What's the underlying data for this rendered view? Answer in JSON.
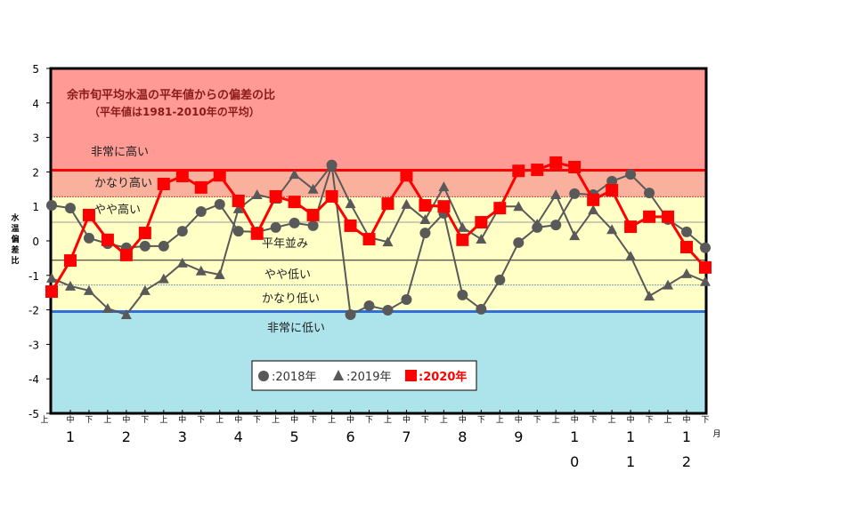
{
  "chart_data": {
    "type": "line",
    "title": "余市旬平均水温の平年値からの偏差の比",
    "subtitle": "（平年値は1981-2010年の平均）",
    "ylabel": "水温偏差比",
    "xunit": "月",
    "ylim": [
      -5,
      5
    ],
    "yticks": [
      "5",
      "4",
      "3",
      "2",
      "1",
      "0",
      "-1",
      "-2",
      "-3",
      "-4",
      "-5"
    ],
    "period_labels": [
      "上",
      "中",
      "下"
    ],
    "month_labels": [
      "1",
      "2",
      "3",
      "4",
      "5",
      "6",
      "7",
      "8",
      "9",
      "10",
      "11",
      "12"
    ],
    "bands": [
      {
        "label": "非常に高い",
        "from": 2.05,
        "to": 5,
        "color": "#ff9a94"
      },
      {
        "label": "かなり高い",
        "from": 1.28,
        "to": 2.05,
        "color": "#f9b09c"
      },
      {
        "label": "やや高い",
        "from": 0.54,
        "to": 1.28,
        "color": "#ffffc6"
      },
      {
        "label": "平年並み",
        "from": -0.56,
        "to": 0.54,
        "color": "#ffffc6"
      },
      {
        "label": "やや低い",
        "from": -1.28,
        "to": -0.56,
        "color": "#ffffc6"
      },
      {
        "label": "かなり低い",
        "from": -2.05,
        "to": -1.28,
        "color": "#ffffc6"
      },
      {
        "label": "非常に低い",
        "from": -5,
        "to": -2.05,
        "color": "#ade4ec"
      }
    ],
    "series": [
      {
        "name": "2018年",
        "legend": "●:2018年",
        "marker": "circle",
        "color": "#595959",
        "values": [
          1.03,
          0.95,
          0.08,
          -0.08,
          -0.2,
          -0.15,
          -0.15,
          0.28,
          0.85,
          1.06,
          0.28,
          0.26,
          0.39,
          0.52,
          0.44,
          2.2,
          -2.14,
          -1.88,
          -2.01,
          -1.7,
          0.23,
          0.8,
          -1.57,
          -1.98,
          -1.13,
          -0.05,
          0.39,
          0.46,
          1.37,
          1.34,
          1.73,
          1.93,
          1.39,
          0.62,
          0.26,
          -0.2
        ]
      },
      {
        "name": "2019年",
        "legend": "▲:2019年",
        "marker": "triangle",
        "color": "#595959",
        "values": [
          -1.08,
          -1.31,
          -1.44,
          -1.96,
          -2.14,
          -1.44,
          -1.1,
          -0.64,
          -0.87,
          -0.98,
          0.93,
          1.34,
          1.21,
          1.93,
          1.5,
          2.2,
          1.08,
          0.1,
          -0.03,
          1.06,
          0.62,
          1.57,
          0.39,
          0.05,
          1.0,
          1.0,
          0.49,
          1.34,
          0.15,
          0.9,
          0.33,
          -0.44,
          -1.6,
          -1.28,
          -0.95,
          -1.18
        ]
      },
      {
        "name": "2020年",
        "legend": "■:2020年",
        "marker": "square",
        "color": "#ff0000",
        "values": [
          -1.47,
          -0.57,
          0.75,
          0.03,
          -0.41,
          0.23,
          1.65,
          1.88,
          1.55,
          1.9,
          1.16,
          0.21,
          1.29,
          1.13,
          0.75,
          1.29,
          0.44,
          0.05,
          1.08,
          1.9,
          1.03,
          1.0,
          0.03,
          0.54,
          0.95,
          2.03,
          2.06,
          2.27,
          2.14,
          1.19,
          1.47,
          0.41,
          0.7,
          0.7,
          -0.18,
          -0.77
        ]
      }
    ]
  }
}
